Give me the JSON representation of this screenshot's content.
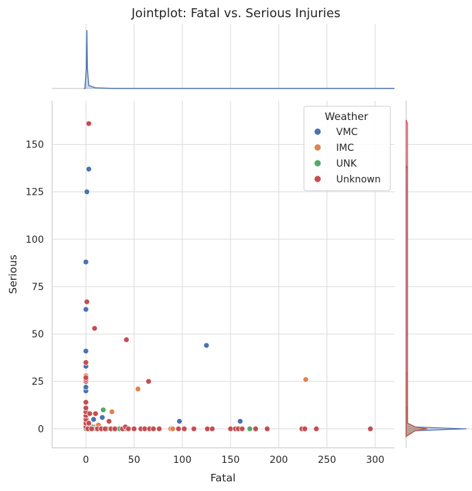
{
  "chart_data": {
    "type": "scatter",
    "title": "Jointplot: Fatal vs. Serious Injuries",
    "xlabel": "Fatal",
    "ylabel": "Serious",
    "xlim": [
      -35,
      320
    ],
    "ylim": [
      -10,
      173
    ],
    "xticks": [
      0,
      50,
      100,
      150,
      200,
      250,
      300
    ],
    "yticks": [
      0,
      25,
      50,
      75,
      100,
      125,
      150
    ],
    "grid": true,
    "legend": {
      "title": "Weather",
      "placement": "top-right"
    },
    "marginals": {
      "top": "kde of Fatal",
      "right": "kde of Serious"
    },
    "series": [
      {
        "name": "VMC",
        "color": "#4c72b0",
        "points": [
          [
            0,
            0
          ],
          [
            0,
            1
          ],
          [
            0,
            2
          ],
          [
            0,
            3
          ],
          [
            0,
            4
          ],
          [
            0,
            5
          ],
          [
            0,
            6
          ],
          [
            0,
            20
          ],
          [
            0,
            22
          ],
          [
            0,
            33
          ],
          [
            0,
            41
          ],
          [
            0,
            63
          ],
          [
            0,
            88
          ],
          [
            1,
            125
          ],
          [
            3,
            137
          ],
          [
            2,
            1
          ],
          [
            3,
            0
          ],
          [
            5,
            0
          ],
          [
            7,
            1
          ],
          [
            8,
            5
          ],
          [
            10,
            0
          ],
          [
            12,
            0
          ],
          [
            15,
            0
          ],
          [
            17,
            6
          ],
          [
            20,
            0
          ],
          [
            25,
            0
          ],
          [
            30,
            0
          ],
          [
            35,
            0
          ],
          [
            97,
            4
          ],
          [
            125,
            44
          ],
          [
            160,
            4
          ]
        ]
      },
      {
        "name": "IMC",
        "color": "#dd8452",
        "points": [
          [
            0,
            28
          ],
          [
            1,
            5
          ],
          [
            2,
            0
          ],
          [
            3,
            2
          ],
          [
            5,
            0
          ],
          [
            8,
            0
          ],
          [
            10,
            1
          ],
          [
            13,
            2
          ],
          [
            18,
            0
          ],
          [
            20,
            0
          ],
          [
            27,
            9
          ],
          [
            33,
            0
          ],
          [
            40,
            0
          ],
          [
            45,
            0
          ],
          [
            54,
            21
          ],
          [
            88,
            0
          ],
          [
            90,
            0
          ],
          [
            150,
            0
          ],
          [
            228,
            26
          ]
        ]
      },
      {
        "name": "UNK",
        "color": "#55a868",
        "points": [
          [
            0,
            0
          ],
          [
            1,
            3
          ],
          [
            3,
            1
          ],
          [
            6,
            0
          ],
          [
            10,
            0
          ],
          [
            15,
            0
          ],
          [
            18,
            10
          ],
          [
            22,
            0
          ],
          [
            35,
            0
          ],
          [
            170,
            0
          ]
        ]
      },
      {
        "name": "Unknown",
        "color": "#c44e52",
        "points": [
          [
            0,
            1
          ],
          [
            0,
            3
          ],
          [
            0,
            5
          ],
          [
            0,
            7
          ],
          [
            0,
            9
          ],
          [
            0,
            11
          ],
          [
            0,
            14
          ],
          [
            0,
            25
          ],
          [
            0,
            26
          ],
          [
            0,
            27
          ],
          [
            0,
            35
          ],
          [
            1,
            67
          ],
          [
            3,
            161
          ],
          [
            2,
            0
          ],
          [
            3,
            3
          ],
          [
            4,
            8
          ],
          [
            6,
            0
          ],
          [
            9,
            53
          ],
          [
            10,
            8
          ],
          [
            12,
            0
          ],
          [
            16,
            0
          ],
          [
            20,
            0
          ],
          [
            24,
            4
          ],
          [
            26,
            0
          ],
          [
            30,
            0
          ],
          [
            38,
            0
          ],
          [
            41,
            1
          ],
          [
            42,
            47
          ],
          [
            44,
            0
          ],
          [
            50,
            0
          ],
          [
            57,
            0
          ],
          [
            61,
            0
          ],
          [
            65,
            25
          ],
          [
            66,
            0
          ],
          [
            70,
            0
          ],
          [
            76,
            0
          ],
          [
            96,
            0
          ],
          [
            102,
            0
          ],
          [
            112,
            0
          ],
          [
            126,
            0
          ],
          [
            131,
            0
          ],
          [
            150,
            0
          ],
          [
            155,
            0
          ],
          [
            158,
            0
          ],
          [
            162,
            0
          ],
          [
            176,
            0
          ],
          [
            188,
            0
          ],
          [
            224,
            0
          ],
          [
            227,
            0
          ],
          [
            239,
            0
          ],
          [
            295,
            0
          ]
        ]
      }
    ]
  }
}
